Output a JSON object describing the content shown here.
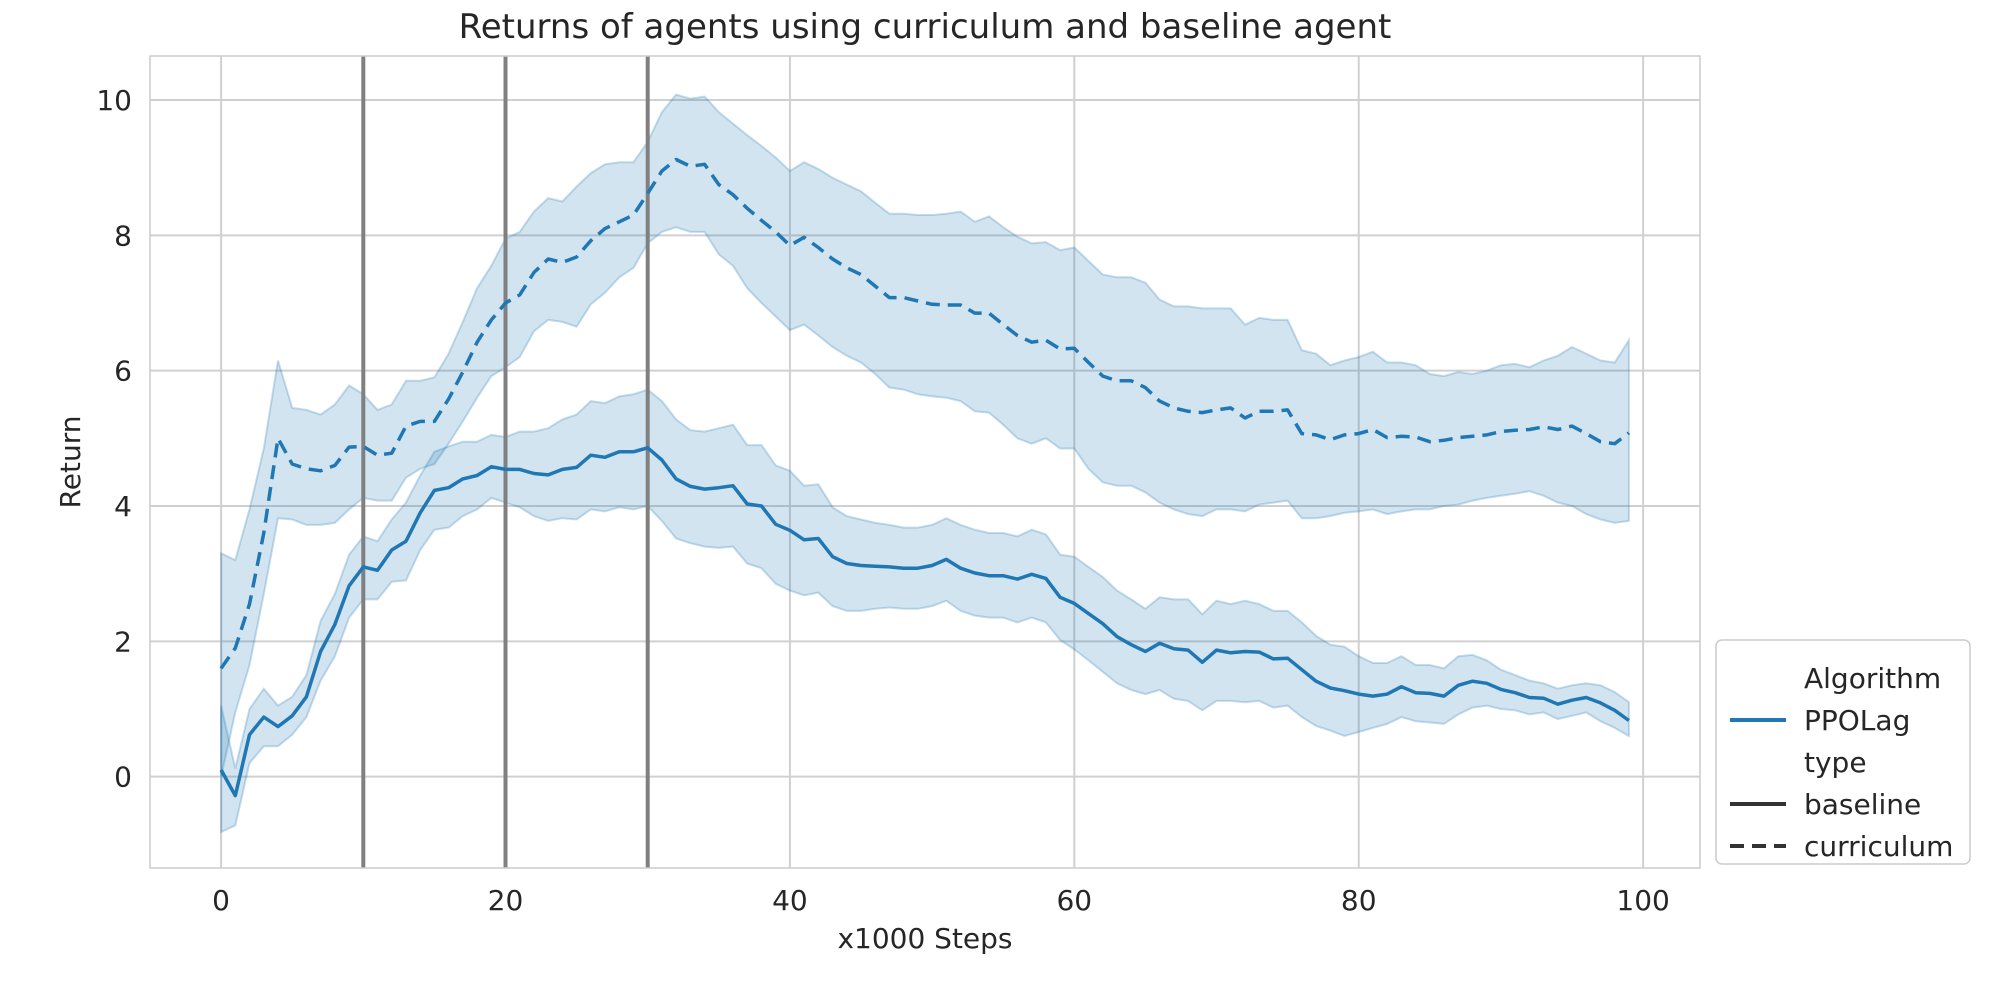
{
  "chart_data": {
    "type": "line",
    "title": "Returns of agents using curriculum and baseline agent",
    "xlabel": "x1000 Steps",
    "ylabel": "Return",
    "xlim": [
      -5,
      104
    ],
    "ylim": [
      -1.35,
      10.65
    ],
    "xticks": [
      0,
      20,
      40,
      60,
      80,
      100
    ],
    "yticks": [
      0,
      2,
      4,
      6,
      8,
      10
    ],
    "grid": true,
    "vlines": [
      10,
      20,
      30
    ],
    "legend_position": "lower-right",
    "legend": {
      "title1": "Algorithm",
      "algo": "PPOLag",
      "title2": "type",
      "type1": "baseline",
      "type2": "curriculum"
    },
    "colors": {
      "line": "#1f77b4",
      "band": "#1f77b4",
      "vline": "#808080",
      "legend_style": "#333333",
      "grid": "#d0d0d0"
    },
    "x": [
      0,
      1,
      2,
      3,
      4,
      5,
      6,
      7,
      8,
      9,
      10,
      11,
      12,
      13,
      14,
      15,
      16,
      17,
      18,
      19,
      20,
      21,
      22,
      23,
      24,
      25,
      26,
      27,
      28,
      29,
      30,
      31,
      32,
      33,
      34,
      35,
      36,
      37,
      38,
      39,
      40,
      41,
      42,
      43,
      44,
      45,
      46,
      47,
      48,
      49,
      50,
      51,
      52,
      53,
      54,
      55,
      56,
      57,
      58,
      59,
      60,
      61,
      62,
      63,
      64,
      65,
      66,
      67,
      68,
      69,
      70,
      71,
      72,
      73,
      74,
      75,
      76,
      77,
      78,
      79,
      80,
      81,
      82,
      83,
      84,
      85,
      86,
      87,
      88,
      89,
      90,
      91,
      92,
      93,
      94,
      95,
      96,
      97,
      98,
      99
    ],
    "series": [
      {
        "name": "baseline",
        "dash": "solid",
        "values": [
          0.1,
          -0.28,
          0.62,
          0.88,
          0.74,
          0.9,
          1.18,
          1.85,
          2.25,
          2.82,
          3.1,
          3.05,
          3.35,
          3.48,
          3.9,
          4.23,
          4.27,
          4.4,
          4.45,
          4.58,
          4.54,
          4.54,
          4.48,
          4.46,
          4.54,
          4.57,
          4.75,
          4.72,
          4.8,
          4.8,
          4.86,
          4.68,
          4.4,
          4.29,
          4.25,
          4.27,
          4.3,
          4.03,
          4.0,
          3.73,
          3.64,
          3.5,
          3.52,
          3.25,
          3.15,
          3.12,
          3.11,
          3.1,
          3.08,
          3.08,
          3.12,
          3.21,
          3.08,
          3.01,
          2.97,
          2.97,
          2.92,
          2.99,
          2.93,
          2.65,
          2.56,
          2.41,
          2.26,
          2.07,
          1.95,
          1.85,
          1.97,
          1.89,
          1.87,
          1.69,
          1.87,
          1.83,
          1.85,
          1.84,
          1.74,
          1.75,
          1.58,
          1.41,
          1.31,
          1.27,
          1.22,
          1.19,
          1.22,
          1.33,
          1.24,
          1.23,
          1.19,
          1.35,
          1.41,
          1.38,
          1.29,
          1.24,
          1.17,
          1.16,
          1.07,
          1.13,
          1.17,
          1.09,
          0.98,
          0.83
        ],
        "lower": [
          -0.82,
          -0.72,
          0.2,
          0.45,
          0.45,
          0.62,
          0.88,
          1.42,
          1.78,
          2.35,
          2.62,
          2.62,
          2.88,
          2.9,
          3.35,
          3.65,
          3.68,
          3.85,
          3.95,
          4.12,
          4.05,
          3.98,
          3.85,
          3.78,
          3.82,
          3.8,
          3.95,
          3.92,
          3.98,
          3.95,
          4.0,
          3.78,
          3.52,
          3.45,
          3.4,
          3.38,
          3.4,
          3.15,
          3.08,
          2.85,
          2.75,
          2.68,
          2.72,
          2.52,
          2.45,
          2.45,
          2.48,
          2.5,
          2.48,
          2.48,
          2.52,
          2.6,
          2.45,
          2.38,
          2.35,
          2.35,
          2.28,
          2.35,
          2.28,
          2.02,
          1.88,
          1.72,
          1.55,
          1.38,
          1.28,
          1.22,
          1.28,
          1.15,
          1.12,
          0.98,
          1.12,
          1.12,
          1.1,
          1.12,
          1.02,
          1.05,
          0.88,
          0.75,
          0.68,
          0.6,
          0.66,
          0.72,
          0.78,
          0.88,
          0.82,
          0.8,
          0.78,
          0.92,
          1.02,
          1.05,
          1.0,
          0.98,
          0.92,
          0.95,
          0.85,
          0.9,
          0.95,
          0.82,
          0.72,
          0.6
        ],
        "upper": [
          1.05,
          0.12,
          1.0,
          1.3,
          1.05,
          1.18,
          1.5,
          2.3,
          2.7,
          3.28,
          3.55,
          3.48,
          3.8,
          4.05,
          4.45,
          4.8,
          4.88,
          4.95,
          4.95,
          5.05,
          5.02,
          5.1,
          5.1,
          5.15,
          5.28,
          5.35,
          5.55,
          5.52,
          5.62,
          5.65,
          5.72,
          5.55,
          5.28,
          5.12,
          5.1,
          5.15,
          5.2,
          4.9,
          4.9,
          4.6,
          4.52,
          4.3,
          4.32,
          3.98,
          3.85,
          3.8,
          3.75,
          3.72,
          3.68,
          3.68,
          3.72,
          3.82,
          3.72,
          3.65,
          3.6,
          3.6,
          3.55,
          3.65,
          3.58,
          3.28,
          3.25,
          3.1,
          2.95,
          2.75,
          2.62,
          2.48,
          2.65,
          2.62,
          2.62,
          2.4,
          2.6,
          2.55,
          2.6,
          2.55,
          2.45,
          2.45,
          2.28,
          2.08,
          1.95,
          1.92,
          1.78,
          1.68,
          1.68,
          1.78,
          1.65,
          1.65,
          1.6,
          1.78,
          1.8,
          1.72,
          1.58,
          1.5,
          1.42,
          1.38,
          1.3,
          1.35,
          1.38,
          1.35,
          1.25,
          1.1
        ]
      },
      {
        "name": "curriculum",
        "dash": "dashed",
        "values": [
          1.6,
          1.9,
          2.55,
          3.6,
          5.0,
          4.62,
          4.55,
          4.52,
          4.6,
          4.87,
          4.88,
          4.75,
          4.78,
          5.18,
          5.25,
          5.25,
          5.58,
          5.98,
          6.42,
          6.75,
          7.0,
          7.12,
          7.45,
          7.65,
          7.6,
          7.68,
          7.92,
          8.1,
          8.2,
          8.3,
          8.62,
          8.95,
          9.12,
          9.02,
          9.05,
          8.75,
          8.6,
          8.4,
          8.22,
          8.05,
          7.85,
          7.97,
          7.82,
          7.65,
          7.52,
          7.42,
          7.25,
          7.08,
          7.08,
          7.03,
          6.98,
          6.97,
          6.97,
          6.85,
          6.85,
          6.68,
          6.52,
          6.42,
          6.45,
          6.32,
          6.33,
          6.12,
          5.92,
          5.85,
          5.85,
          5.75,
          5.55,
          5.45,
          5.4,
          5.38,
          5.42,
          5.45,
          5.3,
          5.4,
          5.4,
          5.42,
          5.07,
          5.05,
          4.98,
          5.05,
          5.07,
          5.13,
          5.01,
          5.03,
          5.02,
          4.95,
          4.97,
          5.01,
          5.03,
          5.05,
          5.1,
          5.12,
          5.13,
          5.17,
          5.13,
          5.18,
          5.07,
          4.95,
          4.92,
          5.08
        ],
        "lower": [
          0.0,
          0.95,
          1.65,
          2.7,
          3.82,
          3.8,
          3.72,
          3.72,
          3.75,
          3.95,
          4.12,
          4.08,
          4.08,
          4.42,
          4.55,
          4.62,
          4.92,
          5.25,
          5.6,
          5.92,
          6.05,
          6.2,
          6.58,
          6.75,
          6.72,
          6.65,
          6.98,
          7.15,
          7.38,
          7.52,
          7.88,
          8.05,
          8.12,
          8.05,
          8.05,
          7.72,
          7.55,
          7.22,
          7.0,
          6.8,
          6.6,
          6.68,
          6.52,
          6.35,
          6.22,
          6.12,
          5.95,
          5.75,
          5.72,
          5.65,
          5.62,
          5.6,
          5.55,
          5.4,
          5.38,
          5.2,
          5.0,
          4.92,
          5.0,
          4.85,
          4.85,
          4.55,
          4.35,
          4.3,
          4.3,
          4.2,
          4.05,
          3.95,
          3.88,
          3.85,
          3.95,
          3.95,
          3.92,
          4.02,
          4.05,
          4.08,
          3.82,
          3.82,
          3.85,
          3.9,
          3.92,
          3.95,
          3.88,
          3.92,
          3.95,
          3.95,
          4.0,
          4.02,
          4.08,
          4.12,
          4.15,
          4.18,
          4.22,
          4.15,
          4.05,
          4.0,
          3.88,
          3.8,
          3.75,
          3.78
        ],
        "upper": [
          3.3,
          3.2,
          3.95,
          4.85,
          6.15,
          5.45,
          5.42,
          5.35,
          5.5,
          5.78,
          5.65,
          5.42,
          5.5,
          5.85,
          5.85,
          5.9,
          6.25,
          6.72,
          7.22,
          7.55,
          7.95,
          8.05,
          8.35,
          8.55,
          8.5,
          8.72,
          8.92,
          9.05,
          9.08,
          9.08,
          9.38,
          9.82,
          10.08,
          10.02,
          10.05,
          9.82,
          9.65,
          9.48,
          9.32,
          9.15,
          8.95,
          9.08,
          8.98,
          8.85,
          8.75,
          8.65,
          8.48,
          8.32,
          8.32,
          8.3,
          8.3,
          8.32,
          8.35,
          8.2,
          8.28,
          8.12,
          7.98,
          7.88,
          7.9,
          7.78,
          7.82,
          7.62,
          7.42,
          7.38,
          7.38,
          7.3,
          7.05,
          6.95,
          6.95,
          6.92,
          6.92,
          6.92,
          6.68,
          6.78,
          6.75,
          6.75,
          6.3,
          6.25,
          6.08,
          6.15,
          6.2,
          6.28,
          6.12,
          6.12,
          6.08,
          5.95,
          5.92,
          5.98,
          5.95,
          6.0,
          6.08,
          6.1,
          6.05,
          6.15,
          6.22,
          6.35,
          6.25,
          6.15,
          6.12,
          6.45
        ]
      }
    ]
  }
}
